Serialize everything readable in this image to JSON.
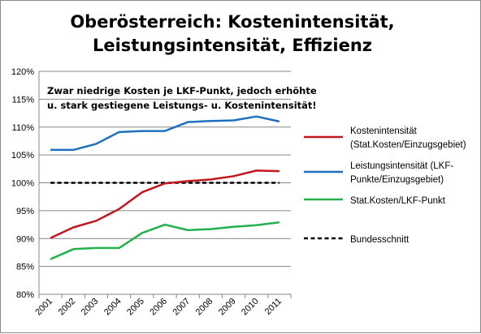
{
  "chart_data": {
    "type": "line",
    "title": "Oberösterreich: Kostenintensität, Leistungsintensität, Effizienz",
    "title_lines": [
      "Oberösterreich: Kostenintensität,",
      "Leistungsintensität, Effizienz"
    ],
    "annotation_lines": [
      "Zwar niedrige Kosten je LKF-Punkt, jedoch erhöhte",
      "u. stark gestiegene Leistungs- u. Kostenintensität!"
    ],
    "categories": [
      "2001",
      "2002",
      "2003",
      "2004",
      "2005",
      "2006",
      "2007",
      "2008",
      "2009",
      "2010",
      "2011"
    ],
    "ylim": [
      0.8,
      1.2
    ],
    "yticks": [
      "80%",
      "85%",
      "90%",
      "95%",
      "100%",
      "105%",
      "110%",
      "115%",
      "120%"
    ],
    "grid": true,
    "legend_position": "right",
    "series": [
      {
        "name": "Kostenintensität (Stat.Kosten/Einzugsgebiet)",
        "legend_lines": [
          "Kostenintensität",
          "(Stat.Kosten/Einzugsgebiet)"
        ],
        "color": "#c0171d",
        "dash": false,
        "values": [
          0.901,
          0.92,
          0.932,
          0.953,
          0.983,
          0.999,
          1.003,
          1.006,
          1.012,
          1.022,
          1.021
        ]
      },
      {
        "name": "Leistungsintensität (LKF-Punkte/Einzugsgebiet)",
        "legend_lines": [
          "Leistungsintensität (LKF-",
          "Punkte/Einzugsgebiet)"
        ],
        "color": "#1f6fc0",
        "dash": false,
        "values": [
          1.059,
          1.059,
          1.07,
          1.091,
          1.093,
          1.093,
          1.109,
          1.111,
          1.112,
          1.119,
          1.11
        ]
      },
      {
        "name": "Stat.Kosten/LKF-Punkt",
        "legend_lines": [
          "Stat.Kosten/LKF-Punkt"
        ],
        "color": "#22b14c",
        "dash": false,
        "values": [
          0.863,
          0.881,
          0.883,
          0.883,
          0.91,
          0.925,
          0.915,
          0.917,
          0.921,
          0.924,
          0.929
        ]
      },
      {
        "name": "Bundesschnitt",
        "legend_lines": [
          "Bundesschnitt"
        ],
        "color": "#000000",
        "dash": true,
        "values": [
          1.0,
          1.0,
          1.0,
          1.0,
          1.0,
          1.0,
          1.0,
          1.0,
          1.0,
          1.0,
          1.0
        ]
      }
    ]
  }
}
